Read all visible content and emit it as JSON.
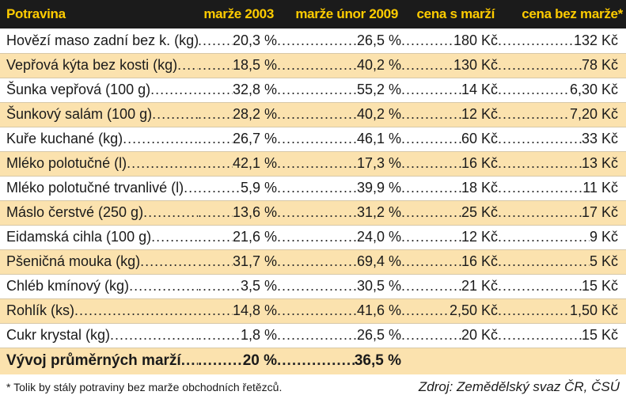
{
  "table": {
    "headers": [
      "Potravina",
      "marže 2003",
      "marže únor 2009",
      "cena s marží",
      "cena bez marže*"
    ],
    "rows": [
      {
        "name": "Hovězí maso zadní bez k. (kg)",
        "m2003": "20,3 %",
        "m2009": "26,5 %",
        "with": "180 Kč",
        "without": "132 Kč"
      },
      {
        "name": "Vepřová kýta bez kosti (kg)",
        "m2003": "18,5 %",
        "m2009": "40,2 %",
        "with": "130 Kč",
        "without": "78 Kč"
      },
      {
        "name": "Šunka vepřová (100 g)",
        "m2003": "32,8 %",
        "m2009": "55,2 %",
        "with": "14 Kč",
        "without": "6,30 Kč"
      },
      {
        "name": "Šunkový salám (100 g)",
        "m2003": "28,2 %",
        "m2009": "40,2 %",
        "with": "12 Kč",
        "without": "7,20 Kč"
      },
      {
        "name": "Kuře kuchané (kg)",
        "m2003": "26,7 %",
        "m2009": "46,1 %",
        "with": "60 Kč",
        "without": "33 Kč"
      },
      {
        "name": "Mléko polotučné (l)",
        "m2003": "42,1 %",
        "m2009": "17,3 %",
        "with": "16 Kč",
        "without": "13 Kč"
      },
      {
        "name": "Mléko polotučné trvanlivé (l)",
        "m2003": "5,9 %",
        "m2009": "39,9 %",
        "with": "18 Kč",
        "without": "11 Kč"
      },
      {
        "name": "Máslo čerstvé (250 g)",
        "m2003": "13,6 %",
        "m2009": "31,2 %",
        "with": "25 Kč",
        "without": "17 Kč"
      },
      {
        "name": "Eidamská cihla (100 g)",
        "m2003": "21,6 %",
        "m2009": "24,0 %",
        "with": "12 Kč",
        "without": "9 Kč"
      },
      {
        "name": "Pšeničná mouka (kg)",
        "m2003": "31,7 %",
        "m2009": "69,4 %",
        "with": "16 Kč",
        "without": "5 Kč"
      },
      {
        "name": "Chléb kmínový (kg)",
        "m2003": "3,5 %",
        "m2009": "30,5 %",
        "with": "21 Kč",
        "without": "15 Kč"
      },
      {
        "name": "Rohlík (ks)",
        "m2003": "14,8 %",
        "m2009": "41,6 %",
        "with": "2,50 Kč",
        "without": "1,50 Kč"
      },
      {
        "name": "Cukr krystal (kg)",
        "m2003": "1,8 %",
        "m2009": "26,5 %",
        "with": "20 Kč",
        "without": "15 Kč"
      }
    ],
    "summary": {
      "name": "Vývoj průměrných marží",
      "m2003": "20 %",
      "m2009": "36,5 %"
    }
  },
  "footnote": "* Tolik by stály potraviny bez marže obchodních řetězců.",
  "source": "Zdroj: Zemědělský svaz ČR, ČSÚ",
  "colors": {
    "header_bg": "#1b1b1b",
    "header_text": "#ffcc00",
    "alt_row": "#fbe2ae"
  }
}
